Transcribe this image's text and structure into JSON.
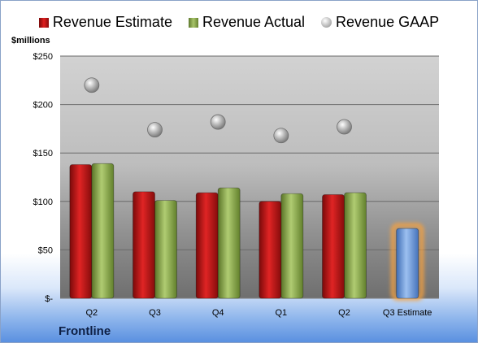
{
  "chart_data": {
    "type": "bar",
    "ylabel": "$millions",
    "ylim": [
      0,
      250
    ],
    "yticks": [
      0,
      50,
      100,
      150,
      200,
      250
    ],
    "ytick_labels": [
      "$-",
      "$50",
      "$100",
      "$150",
      "$200",
      "$250"
    ],
    "categories": [
      "Q2",
      "Q3",
      "Q4",
      "Q1",
      "Q2",
      "Q3 Estimate"
    ],
    "series": [
      {
        "name": "Revenue Estimate",
        "kind": "bar",
        "color": "#c0181c",
        "values": [
          138,
          110,
          109,
          100,
          107,
          null
        ]
      },
      {
        "name": "Revenue Actual",
        "kind": "bar",
        "color": "#8aa64a",
        "values": [
          139,
          101,
          114,
          108,
          109,
          null
        ]
      },
      {
        "name": "Revenue GAAP",
        "kind": "marker",
        "color": "#a8a8a8",
        "values": [
          220,
          174,
          182,
          168,
          177,
          null
        ]
      },
      {
        "name": "",
        "kind": "bar",
        "color": "#6f9ad8",
        "highlight": "#f5a040",
        "values": [
          null,
          null,
          null,
          null,
          null,
          72
        ]
      }
    ],
    "legend_position": "top",
    "grid": true
  },
  "company": "Frontline"
}
